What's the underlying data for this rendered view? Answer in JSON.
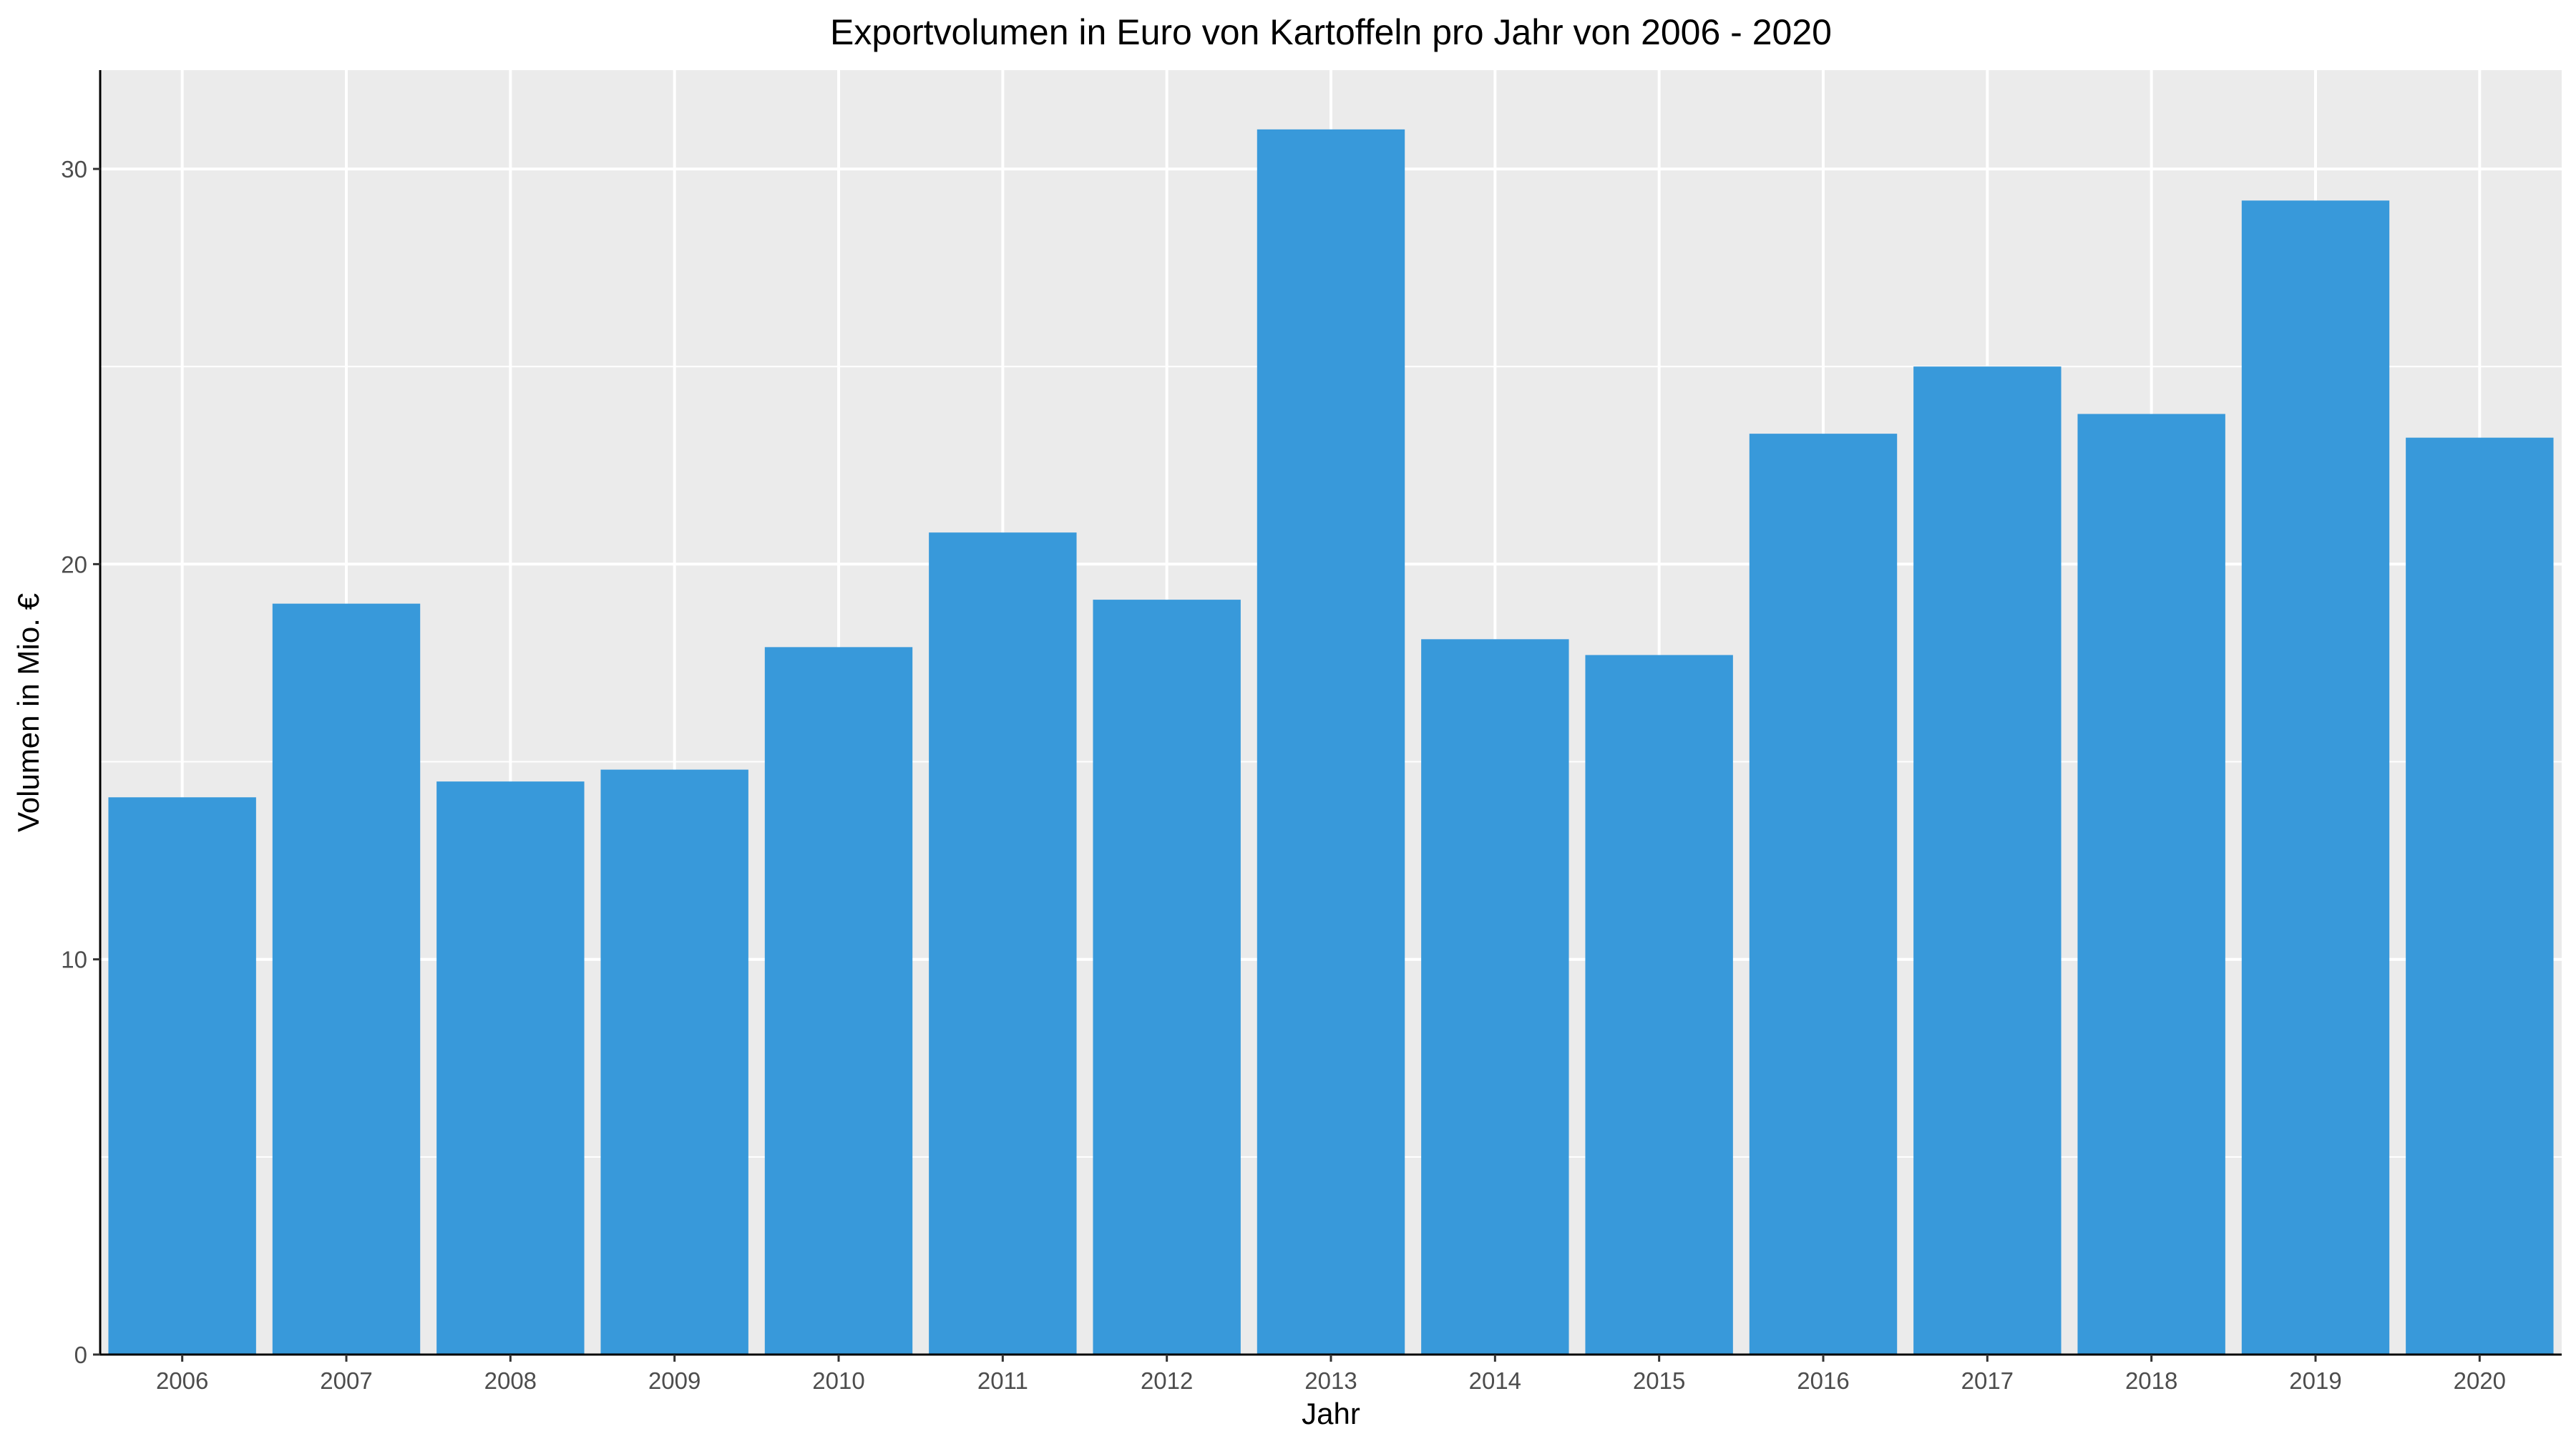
{
  "chart_data": {
    "type": "bar",
    "title": "Exportvolumen in Euro von Kartoffeln pro Jahr von 2006 - 2020",
    "xlabel": "Jahr",
    "ylabel": "Volumen in Mio. €",
    "categories": [
      "2006",
      "2007",
      "2008",
      "2009",
      "2010",
      "2011",
      "2012",
      "2013",
      "2014",
      "2015",
      "2016",
      "2017",
      "2018",
      "2019",
      "2020"
    ],
    "values": [
      14.1,
      19.0,
      14.5,
      14.8,
      17.9,
      20.8,
      19.1,
      31.0,
      18.1,
      17.7,
      23.3,
      25.0,
      23.8,
      29.2,
      23.2
    ],
    "ylim": [
      0,
      32.5
    ],
    "yticks": [
      0,
      10,
      20,
      30
    ],
    "grid": true,
    "bar_color": "#3899da",
    "panel_color": "#ebebeb",
    "grid_color": "#ffffff"
  }
}
